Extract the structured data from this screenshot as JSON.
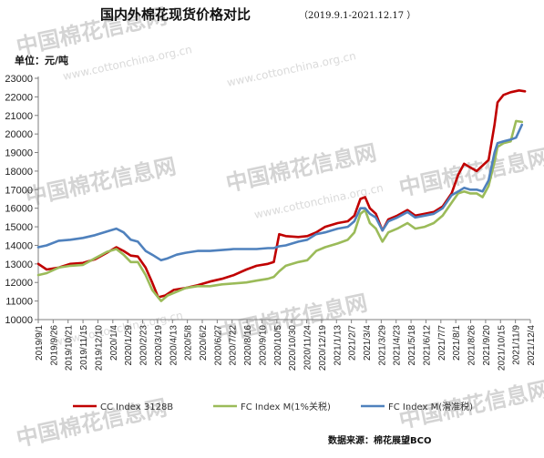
{
  "watermark": {
    "brand": "中国棉花信息网",
    "url": "www.cottonchina.org.cn"
  },
  "chart_data": {
    "type": "line",
    "title": "国内外棉花现货价格对比",
    "subtitle": "（2019.9.1-2021.12.17 ）",
    "unit": "单位：元/吨",
    "source": "数据来源：棉花展望BCO",
    "y_ticks": [
      10000,
      11000,
      12000,
      13000,
      14000,
      15000,
      16000,
      17000,
      18000,
      19000,
      20000,
      21000,
      22000,
      23000
    ],
    "ylim": [
      10000,
      23000
    ],
    "x_range": [
      "2019-09-01",
      "2021-12-04"
    ],
    "x_ticks": [
      "2019/9/1",
      "2019/9/26",
      "2019/10/21",
      "2019/11/15",
      "2019/12/10",
      "2020/1/4",
      "2020/1/29",
      "2020/2/23",
      "2020/3/19",
      "2020/4/13",
      "2020/5/8",
      "2020/6/2",
      "2020/6/27",
      "2020/7/22",
      "2020/8/16",
      "2020/9/10",
      "2020/10/5",
      "2020/10/30",
      "2020/11/24",
      "2020/12/19",
      "2021/1/13",
      "2021/2/7",
      "2021/3/4",
      "2021/3/29",
      "2021/4/23",
      "2021/5/18",
      "2021/6/12",
      "2021/7/7",
      "2021/8/1",
      "2021/8/26",
      "2021/9/20",
      "2021/10/15",
      "2021/11/9",
      "2021/12/4"
    ],
    "grid": false,
    "legend_position": "bottom",
    "series": [
      {
        "name": "CC Index 3128B",
        "color": "#c00000",
        "points": [
          [
            "2019-09-01",
            13000
          ],
          [
            "2019-09-15",
            12700
          ],
          [
            "2019-10-05",
            12800
          ],
          [
            "2019-10-25",
            13000
          ],
          [
            "2019-11-15",
            13050
          ],
          [
            "2019-12-05",
            13250
          ],
          [
            "2019-12-25",
            13600
          ],
          [
            "2020-01-10",
            13900
          ],
          [
            "2020-01-22",
            13700
          ],
          [
            "2020-02-03",
            13450
          ],
          [
            "2020-02-15",
            13400
          ],
          [
            "2020-02-28",
            12800
          ],
          [
            "2020-03-10",
            12000
          ],
          [
            "2020-03-20",
            11200
          ],
          [
            "2020-04-01",
            11300
          ],
          [
            "2020-04-15",
            11600
          ],
          [
            "2020-05-05",
            11700
          ],
          [
            "2020-05-25",
            11850
          ],
          [
            "2020-06-15",
            12050
          ],
          [
            "2020-07-05",
            12200
          ],
          [
            "2020-07-25",
            12400
          ],
          [
            "2020-08-15",
            12700
          ],
          [
            "2020-09-01",
            12900
          ],
          [
            "2020-09-20",
            13000
          ],
          [
            "2020-09-30",
            13100
          ],
          [
            "2020-10-09",
            14600
          ],
          [
            "2020-10-20",
            14500
          ],
          [
            "2020-11-10",
            14450
          ],
          [
            "2020-11-25",
            14500
          ],
          [
            "2020-12-10",
            14700
          ],
          [
            "2020-12-25",
            15000
          ],
          [
            "2021-01-15",
            15200
          ],
          [
            "2021-02-01",
            15300
          ],
          [
            "2021-02-12",
            15600
          ],
          [
            "2021-02-22",
            16500
          ],
          [
            "2021-03-02",
            16600
          ],
          [
            "2021-03-10",
            16000
          ],
          [
            "2021-03-20",
            15700
          ],
          [
            "2021-03-31",
            14800
          ],
          [
            "2021-04-10",
            15400
          ],
          [
            "2021-04-25",
            15600
          ],
          [
            "2021-05-12",
            15900
          ],
          [
            "2021-05-25",
            15600
          ],
          [
            "2021-06-10",
            15700
          ],
          [
            "2021-06-25",
            15800
          ],
          [
            "2021-07-10",
            16100
          ],
          [
            "2021-07-25",
            16800
          ],
          [
            "2021-08-05",
            17800
          ],
          [
            "2021-08-15",
            18400
          ],
          [
            "2021-08-25",
            18200
          ],
          [
            "2021-09-05",
            18000
          ],
          [
            "2021-09-15",
            18300
          ],
          [
            "2021-09-25",
            18600
          ],
          [
            "2021-10-05",
            20500
          ],
          [
            "2021-10-10",
            21700
          ],
          [
            "2021-10-20",
            22100
          ],
          [
            "2021-11-01",
            22250
          ],
          [
            "2021-11-15",
            22350
          ],
          [
            "2021-11-25",
            22300
          ]
        ]
      },
      {
        "name": "FC Index M(1%关税)",
        "color": "#9bbb59",
        "points": [
          [
            "2019-09-01",
            12400
          ],
          [
            "2019-09-15",
            12500
          ],
          [
            "2019-10-05",
            12800
          ],
          [
            "2019-10-25",
            12900
          ],
          [
            "2019-11-15",
            12950
          ],
          [
            "2019-12-05",
            13300
          ],
          [
            "2019-12-25",
            13650
          ],
          [
            "2020-01-10",
            13800
          ],
          [
            "2020-01-22",
            13500
          ],
          [
            "2020-02-03",
            13100
          ],
          [
            "2020-02-15",
            13100
          ],
          [
            "2020-02-28",
            12400
          ],
          [
            "2020-03-10",
            11600
          ],
          [
            "2020-03-25",
            11000
          ],
          [
            "2020-04-05",
            11300
          ],
          [
            "2020-04-20",
            11500
          ],
          [
            "2020-05-05",
            11700
          ],
          [
            "2020-05-25",
            11800
          ],
          [
            "2020-06-15",
            11800
          ],
          [
            "2020-07-05",
            11900
          ],
          [
            "2020-07-25",
            11950
          ],
          [
            "2020-08-15",
            12000
          ],
          [
            "2020-09-01",
            12100
          ],
          [
            "2020-09-20",
            12200
          ],
          [
            "2020-09-30",
            12300
          ],
          [
            "2020-10-09",
            12600
          ],
          [
            "2020-10-20",
            12900
          ],
          [
            "2020-11-10",
            13100
          ],
          [
            "2020-11-25",
            13200
          ],
          [
            "2020-12-10",
            13700
          ],
          [
            "2020-12-25",
            13900
          ],
          [
            "2021-01-15",
            14100
          ],
          [
            "2021-02-01",
            14300
          ],
          [
            "2021-02-12",
            14700
          ],
          [
            "2021-02-22",
            15700
          ],
          [
            "2021-03-02",
            15900
          ],
          [
            "2021-03-10",
            15200
          ],
          [
            "2021-03-20",
            14900
          ],
          [
            "2021-03-31",
            14200
          ],
          [
            "2021-04-10",
            14700
          ],
          [
            "2021-04-25",
            14900
          ],
          [
            "2021-05-12",
            15200
          ],
          [
            "2021-05-25",
            14900
          ],
          [
            "2021-06-10",
            15000
          ],
          [
            "2021-06-25",
            15200
          ],
          [
            "2021-07-10",
            15600
          ],
          [
            "2021-07-25",
            16300
          ],
          [
            "2021-08-05",
            16800
          ],
          [
            "2021-08-15",
            16900
          ],
          [
            "2021-08-25",
            16800
          ],
          [
            "2021-09-05",
            16800
          ],
          [
            "2021-09-15",
            16600
          ],
          [
            "2021-09-25",
            17200
          ],
          [
            "2021-10-05",
            18500
          ],
          [
            "2021-10-10",
            19300
          ],
          [
            "2021-10-20",
            19500
          ],
          [
            "2021-11-01",
            19600
          ],
          [
            "2021-11-10",
            20700
          ],
          [
            "2021-11-20",
            20650
          ]
        ]
      },
      {
        "name": "FC Index M(滑准税)",
        "color": "#4f81bd",
        "points": [
          [
            "2019-09-01",
            13900
          ],
          [
            "2019-09-15",
            14000
          ],
          [
            "2019-10-05",
            14250
          ],
          [
            "2019-10-25",
            14300
          ],
          [
            "2019-11-15",
            14400
          ],
          [
            "2019-12-05",
            14550
          ],
          [
            "2019-12-25",
            14750
          ],
          [
            "2020-01-10",
            14900
          ],
          [
            "2020-01-22",
            14700
          ],
          [
            "2020-02-03",
            14300
          ],
          [
            "2020-02-15",
            14200
          ],
          [
            "2020-02-28",
            13700
          ],
          [
            "2020-03-10",
            13500
          ],
          [
            "2020-03-25",
            13200
          ],
          [
            "2020-04-05",
            13300
          ],
          [
            "2020-04-20",
            13500
          ],
          [
            "2020-05-05",
            13600
          ],
          [
            "2020-05-25",
            13700
          ],
          [
            "2020-06-15",
            13700
          ],
          [
            "2020-07-05",
            13750
          ],
          [
            "2020-07-25",
            13800
          ],
          [
            "2020-08-15",
            13800
          ],
          [
            "2020-09-01",
            13800
          ],
          [
            "2020-09-20",
            13850
          ],
          [
            "2020-09-30",
            13850
          ],
          [
            "2020-10-09",
            13950
          ],
          [
            "2020-10-20",
            14000
          ],
          [
            "2020-11-10",
            14200
          ],
          [
            "2020-11-25",
            14300
          ],
          [
            "2020-12-10",
            14600
          ],
          [
            "2020-12-25",
            14700
          ],
          [
            "2021-01-15",
            14900
          ],
          [
            "2021-02-01",
            15000
          ],
          [
            "2021-02-12",
            15300
          ],
          [
            "2021-02-22",
            16000
          ],
          [
            "2021-03-02",
            16000
          ],
          [
            "2021-03-10",
            15700
          ],
          [
            "2021-03-20",
            15500
          ],
          [
            "2021-03-31",
            14800
          ],
          [
            "2021-04-10",
            15300
          ],
          [
            "2021-04-25",
            15500
          ],
          [
            "2021-05-12",
            15800
          ],
          [
            "2021-05-25",
            15500
          ],
          [
            "2021-06-10",
            15600
          ],
          [
            "2021-06-25",
            15700
          ],
          [
            "2021-07-10",
            16000
          ],
          [
            "2021-07-25",
            16700
          ],
          [
            "2021-08-05",
            16900
          ],
          [
            "2021-08-15",
            17100
          ],
          [
            "2021-08-25",
            17000
          ],
          [
            "2021-09-05",
            17000
          ],
          [
            "2021-09-15",
            16900
          ],
          [
            "2021-09-25",
            17500
          ],
          [
            "2021-10-05",
            19000
          ],
          [
            "2021-10-10",
            19500
          ],
          [
            "2021-10-20",
            19600
          ],
          [
            "2021-11-01",
            19700
          ],
          [
            "2021-11-10",
            19800
          ],
          [
            "2021-11-20",
            20500
          ]
        ]
      }
    ]
  }
}
